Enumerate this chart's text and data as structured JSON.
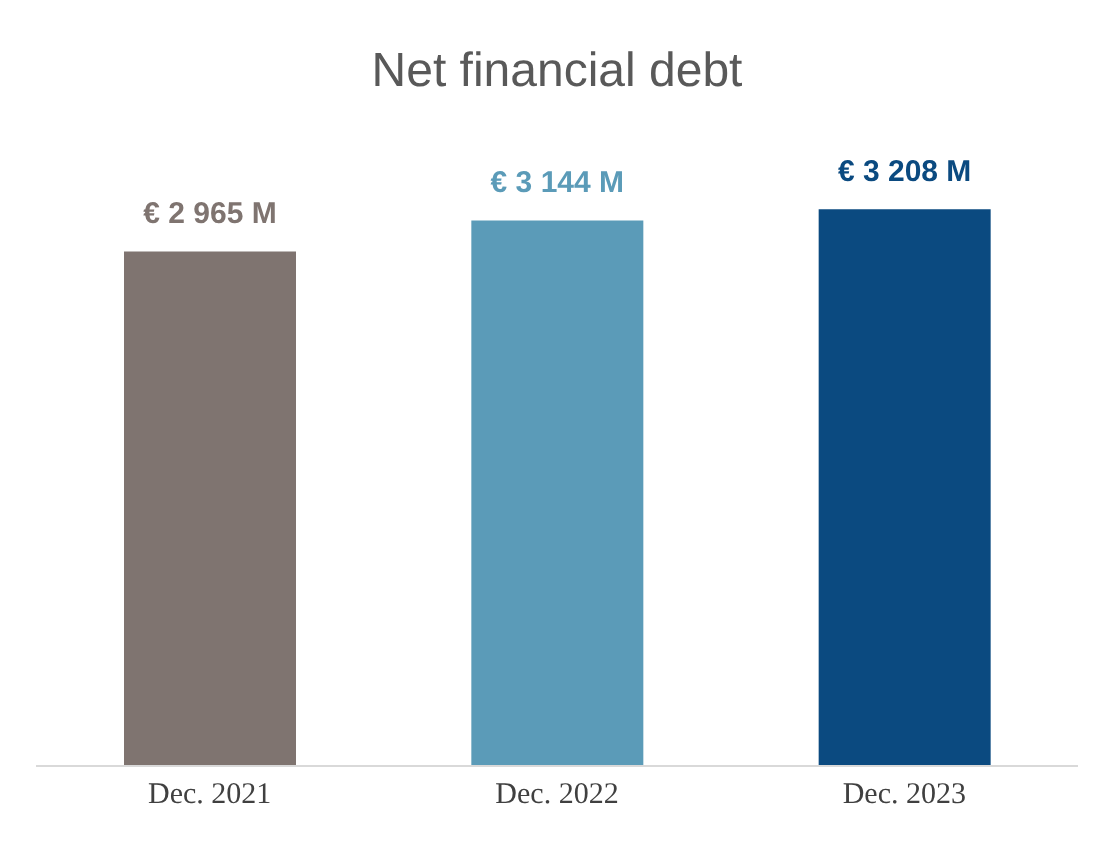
{
  "chart_data": {
    "type": "bar",
    "title": "Net financial debt",
    "categories": [
      "Dec. 2021",
      "Dec. 2022",
      "Dec. 2023"
    ],
    "values": [
      2965,
      3144,
      3208
    ],
    "colors": [
      "#7f7470",
      "#5b9bb8",
      "#0b4a80"
    ],
    "value_labels": [
      "€ 2 965 M",
      "€ 3 144 M",
      "€ 3 208 M"
    ],
    "tick_labels": "x"
  }
}
